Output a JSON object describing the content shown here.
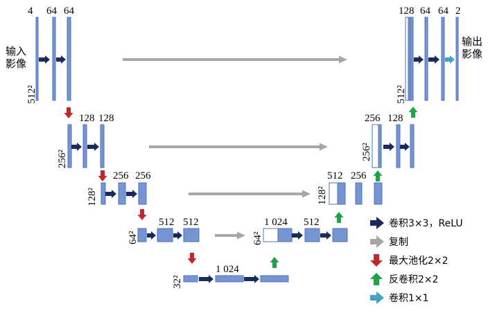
{
  "colors": {
    "block": "#7696d3",
    "block_edge": "#4f72b8",
    "conv3": "#1b2a5c",
    "copy": "#a6a6a6",
    "pool": "#c3272b",
    "upconv": "#23a14a",
    "conv1": "#3fa4c4"
  },
  "icons": {
    "conv3": "navy-arrow-right-icon",
    "copy": "gray-arrow-right-icon",
    "pool": "red-arrow-down-icon",
    "upconv": "green-arrow-up-icon",
    "conv1": "cyan-arrow-right-icon"
  },
  "input_label": [
    "输入",
    "影像"
  ],
  "output_label": [
    "输出",
    "影像"
  ],
  "levels": {
    "l1_left": {
      "size": "512²",
      "channels": [
        "4",
        "64",
        "64"
      ]
    },
    "l1_right": {
      "size": "512²",
      "channels": [
        "128",
        "64",
        "64",
        "2"
      ]
    },
    "l2_left": {
      "size": "256²",
      "channels": [
        "128",
        "128"
      ]
    },
    "l2_right": {
      "size": "256²",
      "channels": [
        "256",
        "128"
      ]
    },
    "l3_left": {
      "size": "128²",
      "channels": [
        "256",
        "256"
      ]
    },
    "l3_right": {
      "size": "128²",
      "channels": [
        "512",
        "256"
      ]
    },
    "l4_left": {
      "size": "64²",
      "channels": [
        "512",
        "512"
      ]
    },
    "l4_right": {
      "size": "64²",
      "channels": [
        "1 024",
        "512"
      ]
    },
    "l5": {
      "size": "32²",
      "channels": [
        "1 024"
      ]
    }
  },
  "legend": {
    "conv3": "卷积3×3，ReLU",
    "copy": "复制",
    "pool": "最大池化2×2",
    "upconv": "反卷积2×2",
    "conv1": "卷积1×1"
  }
}
